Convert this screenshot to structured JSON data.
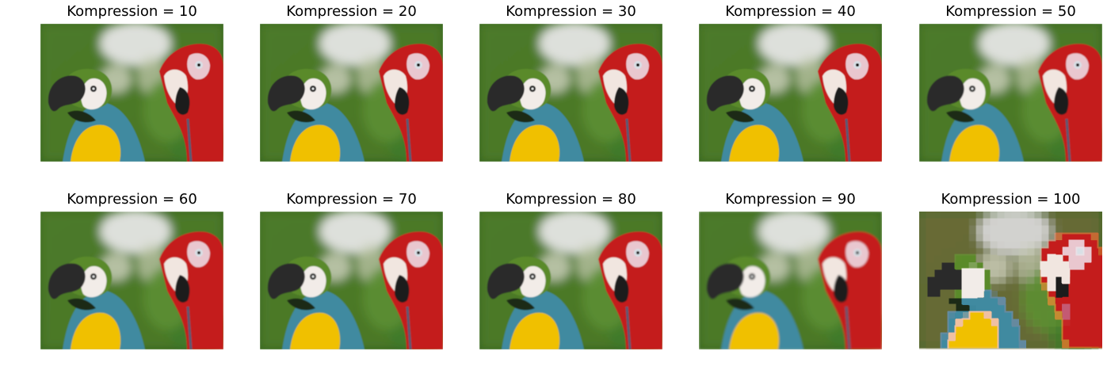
{
  "panels": [
    {
      "title": "Kompression = 10",
      "level": 10
    },
    {
      "title": "Kompression = 20",
      "level": 20
    },
    {
      "title": "Kompression = 30",
      "level": 30
    },
    {
      "title": "Kompression = 40",
      "level": 40
    },
    {
      "title": "Kompression = 50",
      "level": 50
    },
    {
      "title": "Kompression = 60",
      "level": 60
    },
    {
      "title": "Kompression = 70",
      "level": 70
    },
    {
      "title": "Kompression = 80",
      "level": 80
    },
    {
      "title": "Kompression = 90",
      "level": 90
    },
    {
      "title": "Kompression = 100",
      "level": 100
    }
  ],
  "palette": {
    "background_green": "#4f7d2a",
    "background_light": "#e6e6e6",
    "parrot_red": "#c41e1a",
    "parrot_yellow": "#f0c000",
    "parrot_blue": "#3f8aa0",
    "beak_black": "#2a2a2a",
    "face_white": "#f2ece8"
  }
}
